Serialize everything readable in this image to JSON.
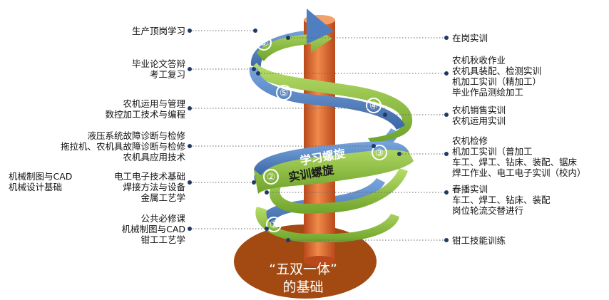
{
  "base": {
    "line1": "“五双一体”",
    "line2": "的基础"
  },
  "bands": {
    "upper": "学习螺旋",
    "lower": "实训螺旋"
  },
  "stages": [
    "①",
    "②",
    "③",
    "④",
    "⑤",
    "⑥"
  ],
  "left_labels": [
    {
      "lines": [
        "生产顶岗学习"
      ]
    },
    {
      "lines": [
        "毕业论文答辩",
        "考工复习"
      ]
    },
    {
      "lines": [
        "农机运用与管理",
        "数控加工技术与编程"
      ]
    },
    {
      "lines": [
        "液压系统故障诊断与检修",
        "拖拉机、农机具故障诊断与检修",
        "农机具应用技术"
      ]
    },
    {
      "lines": [
        "电工电子技术基础",
        "焊接方法与设备",
        "金属工艺学"
      ]
    },
    {
      "lines": [
        "机械制图与CAD",
        "机械设计基础"
      ]
    },
    {
      "lines": [
        "公共必修课",
        "机械制图与CAD",
        "钳工工艺学"
      ]
    }
  ],
  "right_labels": [
    {
      "lines": [
        "在岗实训"
      ]
    },
    {
      "lines": [
        "农机秋收作业",
        "农机具装配、检测实训",
        "机加工实训（精加工）",
        "毕业作品测绘加工"
      ]
    },
    {
      "lines": [
        "农机销售实训",
        "农机运用实训"
      ]
    },
    {
      "lines": [
        "农机检修",
        "机加工实训（普加工",
        "车工、焊工、钻床、装配、锯床",
        "焊工作业、电工电子实训（校内）"
      ]
    },
    {
      "lines": [
        "春播实训",
        "车工、焊工、钻床、装配",
        "岗位轮流交替进行"
      ]
    },
    {
      "lines": [
        "钳工技能训练"
      ]
    }
  ],
  "colors": {
    "pillar": "#d9652a",
    "base": "#a24a12",
    "green": "#8fc23f",
    "blue": "#4f7fc0",
    "dot": "#1f3a66"
  }
}
